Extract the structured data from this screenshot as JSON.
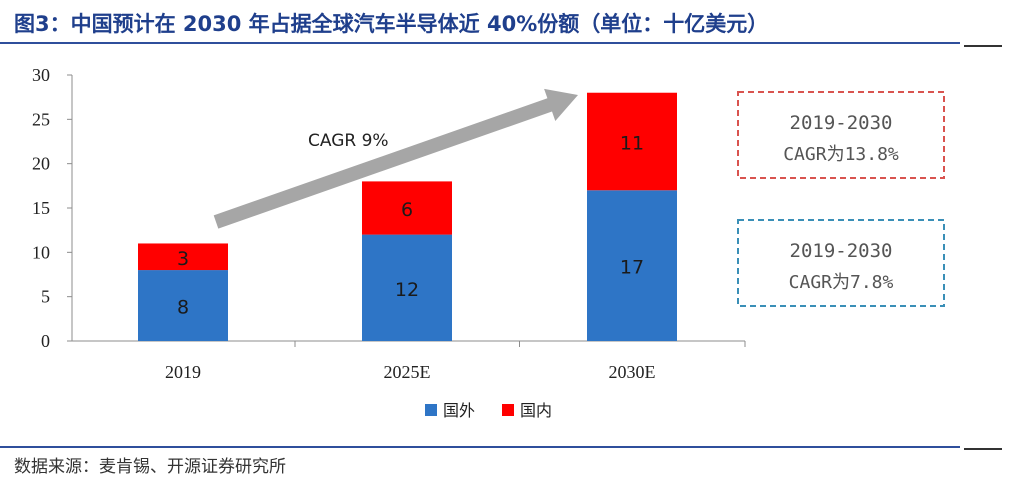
{
  "header": {
    "title": "图3：中国预计在 2030 年占据全球汽车半导体近 40%份额（单位：十亿美元）"
  },
  "footer": {
    "source": "数据来源：麦肯锡、开源证券研究所"
  },
  "chart_data": {
    "type": "bar",
    "stacked": true,
    "categories": [
      "2019",
      "2025E",
      "2030E"
    ],
    "series": [
      {
        "name": "国外",
        "values": [
          8,
          12,
          17
        ],
        "color": "#2e75c6"
      },
      {
        "name": "国内",
        "values": [
          3,
          6,
          11
        ],
        "color": "#ff0000"
      }
    ],
    "ylim": [
      0,
      30
    ],
    "yticks": [
      0,
      5,
      10,
      15,
      20,
      25,
      30
    ],
    "grid": false,
    "legend": "bottom-center",
    "arrow_label": "CAGR 9%",
    "callouts": [
      {
        "line1": "2019-2030",
        "line2": "CAGR为13.8%",
        "color": "#d9534f"
      },
      {
        "line1": "2019-2030",
        "line2": "CAGR为7.8%",
        "color": "#3a8fb7"
      }
    ]
  }
}
